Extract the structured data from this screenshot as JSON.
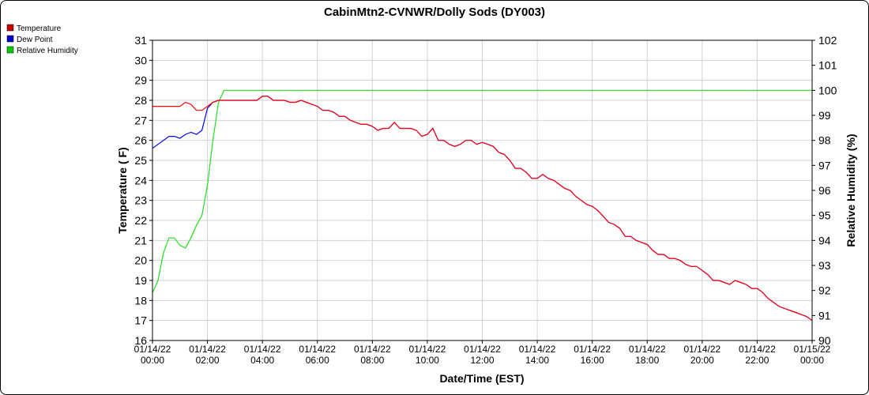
{
  "chart_data": {
    "type": "line",
    "title": "CabinMtn2-CVNWR/Dolly Sods (DY003)",
    "xlabel": "Date/Time (EST)",
    "ylabel": "Temperature ( F)",
    "y2label": "Relative Humidity (%)",
    "ylim": [
      16,
      31
    ],
    "y2lim": [
      90,
      102
    ],
    "xlim_hours": [
      0,
      24
    ],
    "grid": true,
    "legend_position": "top-left",
    "x_ticks": [
      {
        "hour": 0,
        "date": "01/14/22",
        "time": "00:00"
      },
      {
        "hour": 2,
        "date": "01/14/22",
        "time": "02:00"
      },
      {
        "hour": 4,
        "date": "01/14/22",
        "time": "04:00"
      },
      {
        "hour": 6,
        "date": "01/14/22",
        "time": "06:00"
      },
      {
        "hour": 8,
        "date": "01/14/22",
        "time": "08:00"
      },
      {
        "hour": 10,
        "date": "01/14/22",
        "time": "10:00"
      },
      {
        "hour": 12,
        "date": "01/14/22",
        "time": "12:00"
      },
      {
        "hour": 14,
        "date": "01/14/22",
        "time": "14:00"
      },
      {
        "hour": 16,
        "date": "01/14/22",
        "time": "16:00"
      },
      {
        "hour": 18,
        "date": "01/14/22",
        "time": "18:00"
      },
      {
        "hour": 20,
        "date": "01/14/22",
        "time": "20:00"
      },
      {
        "hour": 22,
        "date": "01/14/22",
        "time": "22:00"
      },
      {
        "hour": 24,
        "date": "01/15/22",
        "time": "00:00"
      }
    ],
    "y_ticks": [
      16,
      17,
      18,
      19,
      20,
      21,
      22,
      23,
      24,
      25,
      26,
      27,
      28,
      29,
      30,
      31
    ],
    "y2_ticks": [
      90,
      91,
      92,
      93,
      94,
      95,
      96,
      97,
      98,
      99,
      100,
      101,
      102
    ],
    "series": [
      {
        "name": "Temperature",
        "axis": "left",
        "color": "#ff0000",
        "swatch": "#cc0000",
        "points": [
          [
            0,
            27.7
          ],
          [
            0.2,
            27.7
          ],
          [
            0.4,
            27.7
          ],
          [
            0.6,
            27.7
          ],
          [
            0.8,
            27.7
          ],
          [
            1.0,
            27.7
          ],
          [
            1.2,
            27.9
          ],
          [
            1.4,
            27.8
          ],
          [
            1.6,
            27.5
          ],
          [
            1.8,
            27.5
          ],
          [
            2.0,
            27.7
          ],
          [
            2.2,
            27.9
          ],
          [
            2.4,
            28.0
          ],
          [
            2.6,
            28.0
          ],
          [
            2.8,
            28.0
          ],
          [
            3.0,
            28.0
          ],
          [
            3.2,
            28.0
          ],
          [
            3.4,
            28.0
          ],
          [
            3.6,
            28.0
          ],
          [
            3.8,
            28.0
          ],
          [
            4.0,
            28.2
          ],
          [
            4.2,
            28.2
          ],
          [
            4.4,
            28.0
          ],
          [
            4.6,
            28.0
          ],
          [
            4.8,
            28.0
          ],
          [
            5.0,
            27.9
          ],
          [
            5.2,
            27.9
          ],
          [
            5.4,
            28.0
          ],
          [
            5.6,
            27.9
          ],
          [
            5.8,
            27.8
          ],
          [
            6.0,
            27.7
          ],
          [
            6.2,
            27.5
          ],
          [
            6.4,
            27.5
          ],
          [
            6.6,
            27.4
          ],
          [
            6.8,
            27.2
          ],
          [
            7.0,
            27.2
          ],
          [
            7.2,
            27.0
          ],
          [
            7.4,
            26.9
          ],
          [
            7.6,
            26.8
          ],
          [
            7.8,
            26.8
          ],
          [
            8.0,
            26.7
          ],
          [
            8.2,
            26.5
          ],
          [
            8.4,
            26.6
          ],
          [
            8.6,
            26.6
          ],
          [
            8.8,
            26.9
          ],
          [
            9.0,
            26.6
          ],
          [
            9.2,
            26.6
          ],
          [
            9.4,
            26.6
          ],
          [
            9.6,
            26.5
          ],
          [
            9.8,
            26.2
          ],
          [
            10.0,
            26.3
          ],
          [
            10.2,
            26.6
          ],
          [
            10.4,
            26.0
          ],
          [
            10.6,
            26.0
          ],
          [
            10.8,
            25.8
          ],
          [
            11.0,
            25.7
          ],
          [
            11.2,
            25.8
          ],
          [
            11.4,
            26.0
          ],
          [
            11.6,
            26.0
          ],
          [
            11.8,
            25.8
          ],
          [
            12.0,
            25.9
          ],
          [
            12.2,
            25.8
          ],
          [
            12.4,
            25.7
          ],
          [
            12.6,
            25.4
          ],
          [
            12.8,
            25.3
          ],
          [
            13.0,
            25.0
          ],
          [
            13.2,
            24.6
          ],
          [
            13.4,
            24.6
          ],
          [
            13.6,
            24.4
          ],
          [
            13.8,
            24.1
          ],
          [
            14.0,
            24.1
          ],
          [
            14.2,
            24.3
          ],
          [
            14.4,
            24.1
          ],
          [
            14.6,
            24.0
          ],
          [
            14.8,
            23.8
          ],
          [
            15.0,
            23.6
          ],
          [
            15.2,
            23.5
          ],
          [
            15.4,
            23.2
          ],
          [
            15.6,
            23.0
          ],
          [
            15.8,
            22.8
          ],
          [
            16.0,
            22.7
          ],
          [
            16.2,
            22.5
          ],
          [
            16.4,
            22.2
          ],
          [
            16.6,
            21.9
          ],
          [
            16.8,
            21.8
          ],
          [
            17.0,
            21.6
          ],
          [
            17.2,
            21.2
          ],
          [
            17.4,
            21.2
          ],
          [
            17.6,
            21.0
          ],
          [
            17.8,
            20.9
          ],
          [
            18.0,
            20.8
          ],
          [
            18.2,
            20.5
          ],
          [
            18.4,
            20.3
          ],
          [
            18.6,
            20.3
          ],
          [
            18.8,
            20.1
          ],
          [
            19.0,
            20.1
          ],
          [
            19.2,
            20.0
          ],
          [
            19.4,
            19.8
          ],
          [
            19.6,
            19.7
          ],
          [
            19.8,
            19.7
          ],
          [
            20.0,
            19.5
          ],
          [
            20.2,
            19.3
          ],
          [
            20.4,
            19.0
          ],
          [
            20.6,
            19.0
          ],
          [
            20.8,
            18.9
          ],
          [
            21.0,
            18.8
          ],
          [
            21.2,
            19.0
          ],
          [
            21.4,
            18.9
          ],
          [
            21.6,
            18.8
          ],
          [
            21.8,
            18.6
          ],
          [
            22.0,
            18.6
          ],
          [
            22.2,
            18.4
          ],
          [
            22.4,
            18.1
          ],
          [
            22.6,
            17.9
          ],
          [
            22.8,
            17.7
          ],
          [
            23.0,
            17.6
          ],
          [
            23.2,
            17.5
          ],
          [
            23.4,
            17.4
          ],
          [
            23.6,
            17.3
          ],
          [
            23.8,
            17.2
          ],
          [
            24.0,
            17.0
          ]
        ]
      },
      {
        "name": "Dew Point",
        "axis": "left",
        "color": "#0000ff",
        "swatch": "#0000cc",
        "points": [
          [
            0,
            25.6
          ],
          [
            0.2,
            25.8
          ],
          [
            0.4,
            26.0
          ],
          [
            0.6,
            26.2
          ],
          [
            0.8,
            26.2
          ],
          [
            1.0,
            26.1
          ],
          [
            1.2,
            26.3
          ],
          [
            1.4,
            26.4
          ],
          [
            1.6,
            26.3
          ],
          [
            1.8,
            26.5
          ],
          [
            2.0,
            27.6
          ],
          [
            2.2,
            27.9
          ],
          [
            2.4,
            28.0
          ],
          [
            2.6,
            28.0
          ],
          [
            2.8,
            28.0
          ],
          [
            3.0,
            28.0
          ],
          [
            3.2,
            28.0
          ],
          [
            3.4,
            28.0
          ],
          [
            3.6,
            28.0
          ],
          [
            3.8,
            28.0
          ],
          [
            4.0,
            28.2
          ],
          [
            4.2,
            28.2
          ],
          [
            4.4,
            28.0
          ],
          [
            4.6,
            28.0
          ],
          [
            4.8,
            28.0
          ],
          [
            5.0,
            27.9
          ],
          [
            5.2,
            27.9
          ],
          [
            5.4,
            28.0
          ],
          [
            5.6,
            27.9
          ],
          [
            5.8,
            27.8
          ],
          [
            6.0,
            27.7
          ],
          [
            6.2,
            27.5
          ],
          [
            6.4,
            27.5
          ],
          [
            6.6,
            27.4
          ],
          [
            6.8,
            27.2
          ],
          [
            7.0,
            27.2
          ],
          [
            7.2,
            27.0
          ],
          [
            7.4,
            26.9
          ],
          [
            7.6,
            26.8
          ],
          [
            7.8,
            26.8
          ],
          [
            8.0,
            26.7
          ],
          [
            8.2,
            26.5
          ],
          [
            8.4,
            26.6
          ],
          [
            8.6,
            26.6
          ],
          [
            8.8,
            26.9
          ],
          [
            9.0,
            26.6
          ],
          [
            9.2,
            26.6
          ],
          [
            9.4,
            26.6
          ],
          [
            9.6,
            26.5
          ],
          [
            9.8,
            26.2
          ],
          [
            10.0,
            26.3
          ],
          [
            10.2,
            26.6
          ],
          [
            10.4,
            26.0
          ],
          [
            10.6,
            26.0
          ],
          [
            10.8,
            25.8
          ],
          [
            11.0,
            25.7
          ],
          [
            11.2,
            25.8
          ],
          [
            11.4,
            26.0
          ],
          [
            11.6,
            26.0
          ],
          [
            11.8,
            25.8
          ],
          [
            12.0,
            25.9
          ],
          [
            12.2,
            25.8
          ],
          [
            12.4,
            25.7
          ],
          [
            12.6,
            25.4
          ],
          [
            12.8,
            25.3
          ],
          [
            13.0,
            25.0
          ],
          [
            13.2,
            24.6
          ],
          [
            13.4,
            24.6
          ],
          [
            13.6,
            24.4
          ],
          [
            13.8,
            24.1
          ],
          [
            14.0,
            24.1
          ],
          [
            14.2,
            24.3
          ],
          [
            14.4,
            24.1
          ],
          [
            14.6,
            24.0
          ],
          [
            14.8,
            23.8
          ],
          [
            15.0,
            23.6
          ],
          [
            15.2,
            23.5
          ],
          [
            15.4,
            23.2
          ],
          [
            15.6,
            23.0
          ],
          [
            15.8,
            22.8
          ],
          [
            16.0,
            22.7
          ],
          [
            16.2,
            22.5
          ],
          [
            16.4,
            22.2
          ],
          [
            16.6,
            21.9
          ],
          [
            16.8,
            21.8
          ],
          [
            17.0,
            21.6
          ],
          [
            17.2,
            21.2
          ],
          [
            17.4,
            21.2
          ],
          [
            17.6,
            21.0
          ],
          [
            17.8,
            20.9
          ],
          [
            18.0,
            20.8
          ],
          [
            18.2,
            20.5
          ],
          [
            18.4,
            20.3
          ],
          [
            18.6,
            20.3
          ],
          [
            18.8,
            20.1
          ],
          [
            19.0,
            20.1
          ],
          [
            19.2,
            20.0
          ],
          [
            19.4,
            19.8
          ],
          [
            19.6,
            19.7
          ],
          [
            19.8,
            19.7
          ],
          [
            20.0,
            19.5
          ],
          [
            20.2,
            19.3
          ],
          [
            20.4,
            19.0
          ],
          [
            20.6,
            19.0
          ],
          [
            20.8,
            18.9
          ],
          [
            21.0,
            18.8
          ],
          [
            21.2,
            19.0
          ],
          [
            21.4,
            18.9
          ],
          [
            21.6,
            18.8
          ],
          [
            21.8,
            18.6
          ],
          [
            22.0,
            18.6
          ],
          [
            22.2,
            18.4
          ],
          [
            22.4,
            18.1
          ],
          [
            22.6,
            17.9
          ],
          [
            22.8,
            17.7
          ],
          [
            23.0,
            17.6
          ],
          [
            23.2,
            17.5
          ],
          [
            23.4,
            17.4
          ],
          [
            23.6,
            17.3
          ],
          [
            23.8,
            17.2
          ],
          [
            24.0,
            17.0
          ]
        ]
      },
      {
        "name": "Relative Humidity",
        "axis": "right",
        "color": "#22dd22",
        "swatch": "#00cc00",
        "points": [
          [
            0,
            91.9
          ],
          [
            0.2,
            92.4
          ],
          [
            0.4,
            93.5
          ],
          [
            0.6,
            94.1
          ],
          [
            0.8,
            94.1
          ],
          [
            1.0,
            93.8
          ],
          [
            1.2,
            93.7
          ],
          [
            1.4,
            94.1
          ],
          [
            1.6,
            94.6
          ],
          [
            1.8,
            95.0
          ],
          [
            2.0,
            96.2
          ],
          [
            2.2,
            98.0
          ],
          [
            2.4,
            99.5
          ],
          [
            2.6,
            100
          ],
          [
            3.0,
            100
          ],
          [
            4.0,
            100
          ],
          [
            6.0,
            100
          ],
          [
            8.0,
            100
          ],
          [
            10.0,
            100
          ],
          [
            12.0,
            100
          ],
          [
            14.0,
            100
          ],
          [
            16.0,
            100
          ],
          [
            18.0,
            100
          ],
          [
            20.0,
            100
          ],
          [
            22.0,
            100
          ],
          [
            24.0,
            100
          ]
        ]
      }
    ]
  }
}
